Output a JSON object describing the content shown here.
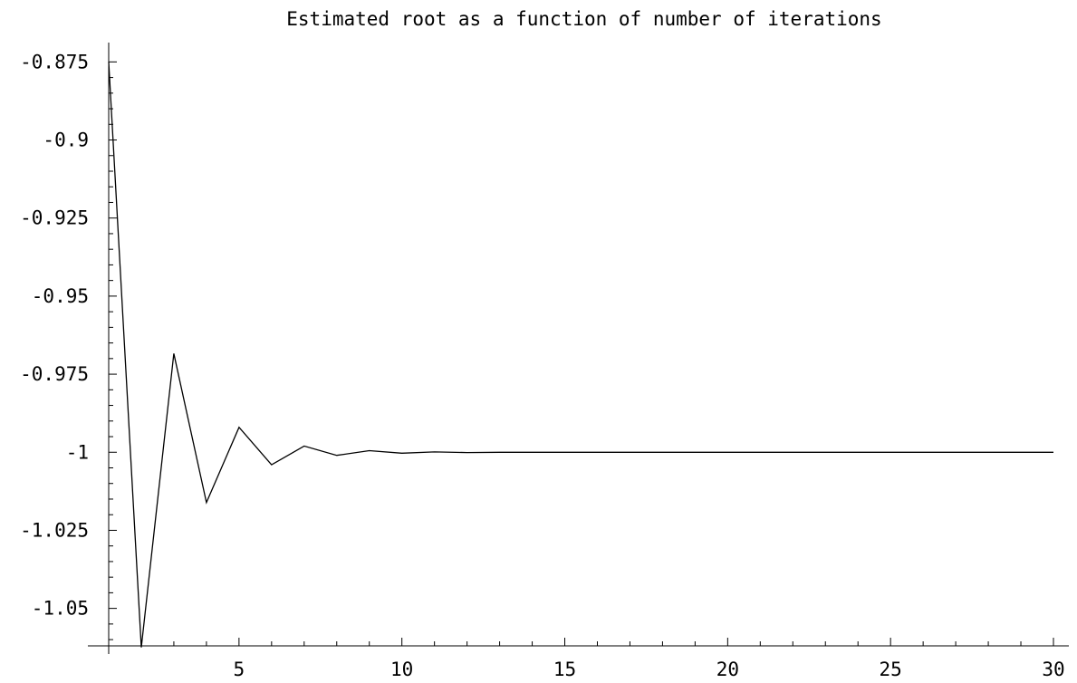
{
  "chart_data": {
    "type": "line",
    "title": "Estimated root as a function of number of iterations",
    "xlabel": "",
    "ylabel": "",
    "xlim": [
      1,
      30
    ],
    "ylim": [
      -1.062,
      -0.872
    ],
    "x_ticks": [
      5,
      10,
      15,
      20,
      25,
      30
    ],
    "x_tick_labels": [
      "5",
      "10",
      "15",
      "20",
      "25",
      "30"
    ],
    "y_ticks": [
      -0.875,
      -0.9,
      -0.925,
      -0.95,
      -0.975,
      -1,
      -1.025,
      -1.05
    ],
    "y_tick_labels": [
      "-0.875",
      "-0.9",
      "-0.925",
      "-0.95",
      "-0.975",
      "-1",
      "-1.025",
      "-1.05"
    ],
    "grid": false,
    "series": [
      {
        "color": "#000000",
        "x": [
          1,
          2,
          3,
          4,
          5,
          6,
          7,
          8,
          9,
          10,
          11,
          12,
          13,
          14,
          15,
          16,
          17,
          18,
          19,
          20,
          21,
          22,
          23,
          24,
          25,
          26,
          27,
          28,
          29,
          30
        ],
        "values": [
          -0.875,
          -1.0625,
          -0.9684,
          -1.0161,
          -0.992,
          -1.004,
          -0.998,
          -1.001,
          -0.9995,
          -1.0003,
          -0.9999,
          -1.0001,
          -1.0,
          -1.0,
          -1.0,
          -1.0,
          -1.0,
          -1.0,
          -1.0,
          -1.0,
          -1.0,
          -1.0,
          -1.0,
          -1.0,
          -1.0,
          -1.0,
          -1.0,
          -1.0,
          -1.0,
          -1.0
        ]
      }
    ]
  }
}
